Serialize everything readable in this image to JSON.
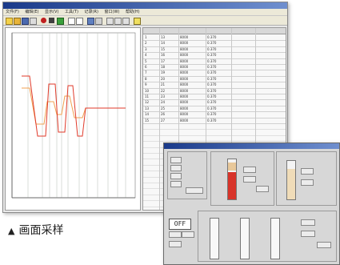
{
  "caption": {
    "marker": "▲",
    "text": "画面采样"
  },
  "main_window": {
    "title": "",
    "menu": [
      "文件(F)",
      "编辑(E)",
      "显示(V)",
      "工具(T)",
      "记录(R)",
      "窗口(W)",
      "帮助(H)"
    ]
  },
  "sub_window": {
    "status_off": "OFF"
  },
  "colors": {
    "trend_red": "#e03a2a",
    "trend_orange": "#f0a050",
    "grid_line": "#bfc8bf",
    "bar_fill": "#d8342a",
    "bar_tan": "#e8c89a"
  },
  "grid_rows": [
    {
      "num": "1",
      "a": "13",
      "b": "8000",
      "c": "0.370"
    },
    {
      "num": "2",
      "a": "14",
      "b": "8000",
      "c": "0.370"
    },
    {
      "num": "3",
      "a": "15",
      "b": "8000",
      "c": "0.370"
    },
    {
      "num": "4",
      "a": "16",
      "b": "8000",
      "c": "0.370"
    },
    {
      "num": "5",
      "a": "17",
      "b": "8000",
      "c": "0.370"
    },
    {
      "num": "6",
      "a": "18",
      "b": "8000",
      "c": "0.370"
    },
    {
      "num": "7",
      "a": "19",
      "b": "8000",
      "c": "0.370"
    },
    {
      "num": "8",
      "a": "20",
      "b": "8000",
      "c": "0.370"
    },
    {
      "num": "9",
      "a": "21",
      "b": "8000",
      "c": "0.370"
    },
    {
      "num": "10",
      "a": "22",
      "b": "8000",
      "c": "0.370"
    },
    {
      "num": "11",
      "a": "23",
      "b": "8000",
      "c": "0.370"
    },
    {
      "num": "12",
      "a": "24",
      "b": "8000",
      "c": "0.370"
    },
    {
      "num": "13",
      "a": "25",
      "b": "8000",
      "c": "0.370"
    },
    {
      "num": "14",
      "a": "26",
      "b": "8000",
      "c": "0.370"
    },
    {
      "num": "15",
      "a": "27",
      "b": "8000",
      "c": "0.370"
    }
  ]
}
